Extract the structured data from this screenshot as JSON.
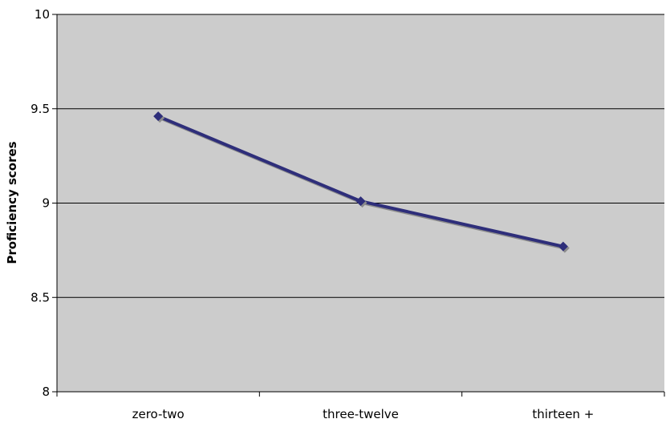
{
  "chart_data": {
    "type": "line",
    "title": "",
    "xlabel": "",
    "ylabel": "Proficiency scores",
    "categories": [
      "zero-two",
      "three-twelve",
      "thirteen +"
    ],
    "series": [
      {
        "values": [
          9.46,
          9.01,
          8.77
        ]
      }
    ],
    "ylim": [
      8,
      10
    ],
    "yticks": [
      8,
      8.5,
      9,
      9.5,
      10
    ],
    "ytick_labels": [
      "8",
      "8.5",
      "9",
      "9.5",
      "10"
    ],
    "grid": true,
    "legend": "none",
    "colors": {
      "plot_background": "#cccccc",
      "line": "#2e2e7a",
      "shadow": "#8c8c8c",
      "gridline": "#000000"
    }
  }
}
